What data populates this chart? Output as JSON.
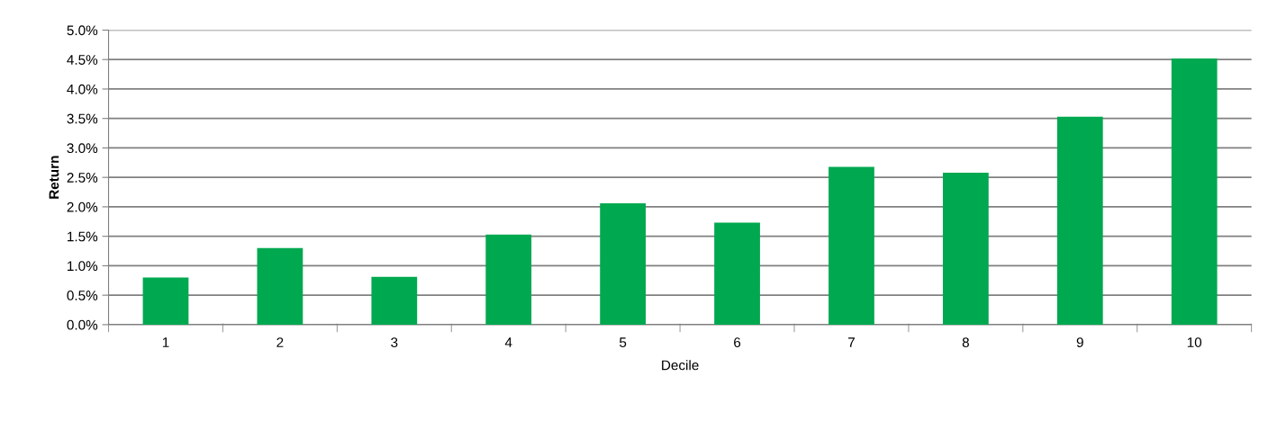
{
  "chart_data": {
    "type": "bar",
    "xlabel": "Decile",
    "ylabel": "Return",
    "categories": [
      "1",
      "2",
      "3",
      "4",
      "5",
      "6",
      "7",
      "8",
      "9",
      "10"
    ],
    "values": [
      0.8,
      1.3,
      0.81,
      1.53,
      2.06,
      1.73,
      2.68,
      2.58,
      3.53,
      4.52
    ],
    "color": "#00a84f",
    "ylim": [
      0,
      5
    ],
    "yticks": [
      {
        "value": 0,
        "label": "0.0%"
      },
      {
        "value": 0.5,
        "label": "0.5%"
      },
      {
        "value": 1,
        "label": "1.0%"
      },
      {
        "value": 1.5,
        "label": "1.5%"
      },
      {
        "value": 2,
        "label": "2.0%"
      },
      {
        "value": 2.5,
        "label": "2.5%"
      },
      {
        "value": 3,
        "label": "3.0%"
      },
      {
        "value": 3.5,
        "label": "3.5%"
      },
      {
        "value": 4,
        "label": "4.0%"
      },
      {
        "value": 4.5,
        "label": "4.5%"
      },
      {
        "value": 5,
        "label": "5.0%"
      }
    ],
    "grid": "y"
  }
}
